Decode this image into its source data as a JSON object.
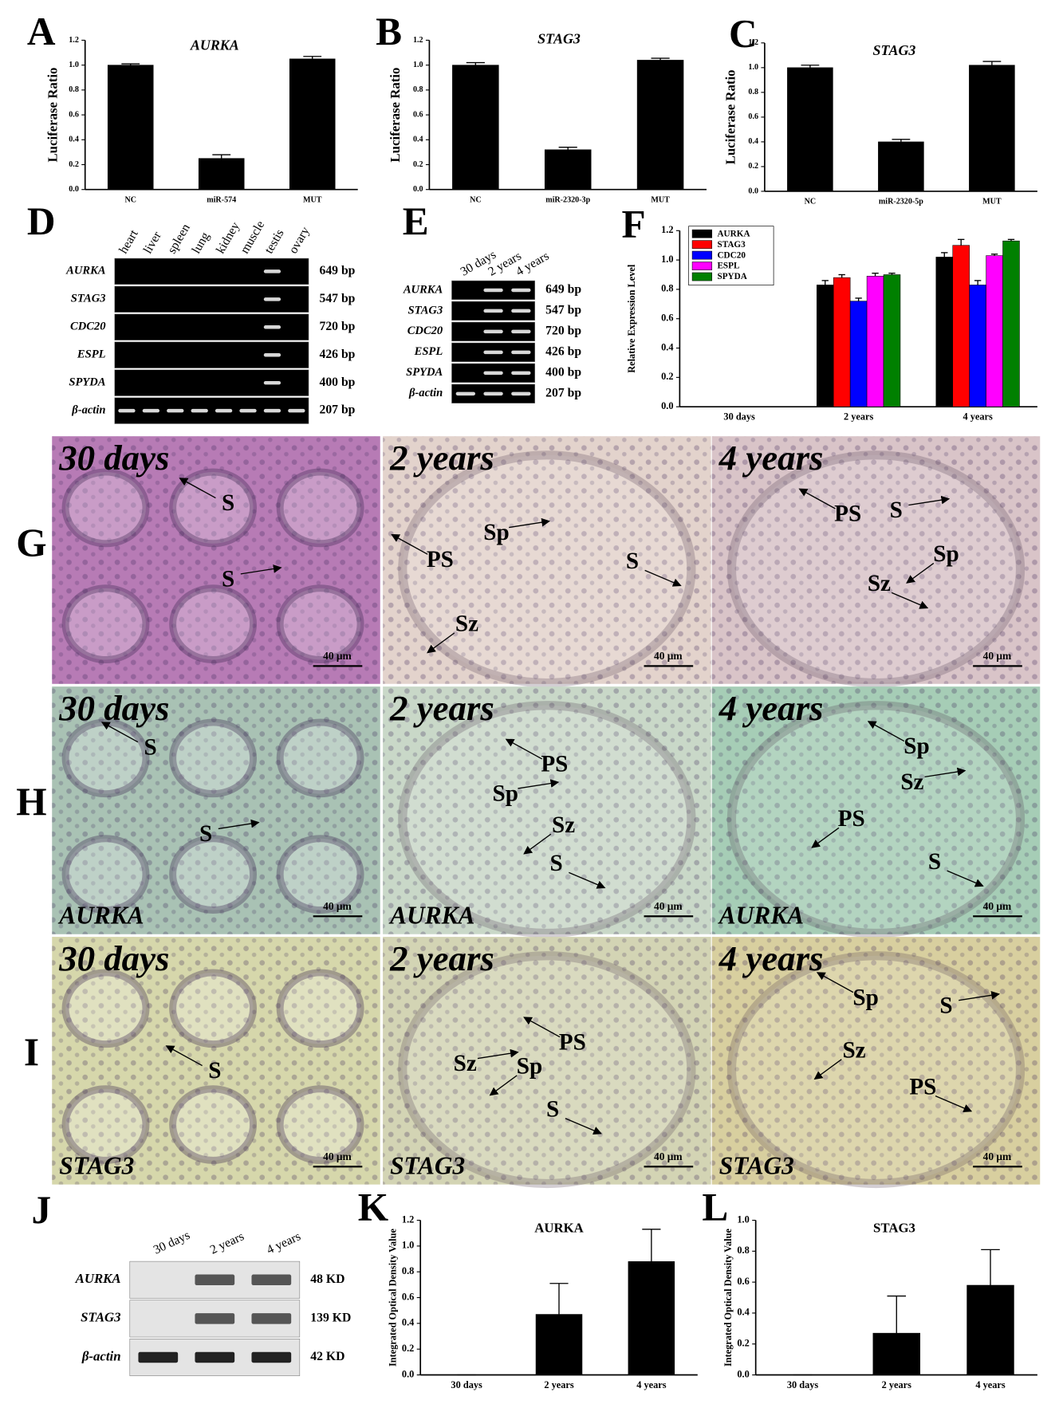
{
  "chart_data": [
    {
      "type": "bar",
      "panel": "A",
      "title": "AURKA",
      "ylabel": "Luciferase Ratio",
      "categories": [
        "NC",
        "miR-574",
        "MUT"
      ],
      "values": [
        1.0,
        0.25,
        1.05
      ],
      "errors": [
        0.01,
        0.03,
        0.02
      ],
      "color": "#000000",
      "ylim": [
        0,
        1.2
      ],
      "yticks": [
        {
          "value": 0,
          "label": "0.0"
        },
        0.2,
        0.4,
        0.6,
        0.8,
        {
          "value": 1,
          "label": "1.0"
        },
        1.2
      ]
    },
    {
      "type": "bar",
      "panel": "B",
      "title": "STAG3",
      "ylabel": "Luciferase Ratio",
      "categories": [
        "NC",
        "miR-2320-3p",
        "MUT"
      ],
      "values": [
        1.0,
        0.32,
        1.04
      ],
      "errors": [
        0.02,
        0.02,
        0.015
      ],
      "color": "#000000",
      "ylim": [
        0,
        1.2
      ],
      "yticks": [
        {
          "value": 0,
          "label": "0.0"
        },
        0.2,
        0.4,
        0.6,
        0.8,
        {
          "value": 1,
          "label": "1.0"
        },
        1.2
      ]
    },
    {
      "type": "bar",
      "panel": "C",
      "title": "STAG3",
      "ylabel": "Luciferase Ratio",
      "categories": [
        "NC",
        "miR-2320-5p",
        "MUT"
      ],
      "values": [
        1.0,
        0.4,
        1.02
      ],
      "errors": [
        0.02,
        0.02,
        0.03
      ],
      "color": "#000000",
      "ylim": [
        0,
        1.2
      ],
      "yticks": [
        {
          "value": 0,
          "label": "0.0"
        },
        0.2,
        0.4,
        0.6,
        0.8,
        {
          "value": 1,
          "label": "1.0"
        },
        1.2
      ]
    },
    {
      "type": "bar",
      "panel": "F",
      "ylabel": "Relative Expression Level",
      "categories": [
        "30 days",
        "2 years",
        "4 years"
      ],
      "legend": "upper left",
      "ylim": [
        0,
        1.2
      ],
      "yticks": [
        {
          "value": 0,
          "label": "0.0"
        },
        0.2,
        0.4,
        0.6,
        0.8,
        {
          "value": 1,
          "label": "1.0"
        },
        1.2
      ],
      "series": [
        {
          "name": "AURKA",
          "color": "#000000",
          "values": [
            0,
            0.83,
            1.02
          ],
          "errors": [
            0,
            0.03,
            0.03
          ]
        },
        {
          "name": "STAG3",
          "color": "#ff0000",
          "values": [
            0,
            0.88,
            1.1
          ],
          "errors": [
            0,
            0.02,
            0.04
          ]
        },
        {
          "name": "CDC20",
          "color": "#0000ff",
          "values": [
            0,
            0.72,
            0.83
          ],
          "errors": [
            0,
            0.02,
            0.03
          ]
        },
        {
          "name": "ESPL",
          "color": "#ff00ff",
          "values": [
            0,
            0.89,
            1.03
          ],
          "errors": [
            0,
            0.02,
            0.01
          ]
        },
        {
          "name": "SPYDA",
          "color": "#008000",
          "values": [
            0,
            0.9,
            1.13
          ],
          "errors": [
            0,
            0.01,
            0.01
          ]
        }
      ]
    },
    {
      "type": "bar",
      "panel": "K",
      "title": "AURKA",
      "ylabel": "Integrated Optical Density Value",
      "categories": [
        "30 days",
        "2 years",
        "4 years"
      ],
      "values": [
        0,
        0.47,
        0.88
      ],
      "errors": [
        0,
        0.24,
        0.25
      ],
      "color": "#000000",
      "ylim": [
        0,
        1.2
      ],
      "yticks": [
        {
          "value": 0,
          "label": "0.0"
        },
        0.2,
        0.4,
        0.6,
        0.8,
        {
          "value": 1,
          "label": "1.0"
        },
        1.2
      ]
    },
    {
      "type": "bar",
      "panel": "L",
      "title": "STAG3",
      "ylabel": "Integrated Optical Density Value",
      "categories": [
        "30 days",
        "2 years",
        "4 years"
      ],
      "values": [
        0,
        0.27,
        0.58
      ],
      "errors": [
        0,
        0.24,
        0.23
      ],
      "color": "#000000",
      "ylim": [
        0,
        1.0
      ],
      "yticks": [
        {
          "value": 0,
          "label": "0.0"
        },
        0.2,
        0.4,
        0.6,
        0.8,
        {
          "value": 1,
          "label": "1.0"
        }
      ]
    }
  ],
  "gels": [
    {
      "panel": "D",
      "lanes": [
        "heart",
        "liver",
        "spleen",
        "lung",
        "kidney",
        "muscle",
        "testis",
        "ovary"
      ],
      "rows": [
        {
          "name": "AURKA",
          "size": "649 bp"
        },
        {
          "name": "STAG3",
          "size": "547 bp"
        },
        {
          "name": "CDC20",
          "size": "720 bp"
        },
        {
          "name": "ESPL",
          "size": "426 bp"
        },
        {
          "name": "SPYDA",
          "size": "400 bp"
        },
        {
          "name": "β-actin",
          "size": "207 bp"
        }
      ]
    },
    {
      "panel": "E",
      "lanes": [
        "30 days",
        "2 years",
        "4 years"
      ],
      "rows": [
        {
          "name": "AURKA",
          "size": "649 bp"
        },
        {
          "name": "STAG3",
          "size": "547 bp"
        },
        {
          "name": "CDC20",
          "size": "720 bp"
        },
        {
          "name": "ESPL",
          "size": "426 bp"
        },
        {
          "name": "SPYDA",
          "size": "400 bp"
        },
        {
          "name": "β-actin",
          "size": "207 bp"
        }
      ]
    },
    {
      "panel": "J",
      "lanes": [
        "30 days",
        "2 years",
        "4 years"
      ],
      "rows": [
        {
          "name": "AURKA",
          "size": "48 KD"
        },
        {
          "name": "STAG3",
          "size": "139 KD"
        },
        {
          "name": "β-actin",
          "size": "42 KD"
        }
      ]
    }
  ],
  "histology": [
    {
      "panel": "G",
      "images": [
        {
          "stage": "30 days",
          "labels": [
            "S",
            "S"
          ],
          "scale": "40 μm"
        },
        {
          "stage": "2 years",
          "labels": [
            "PS",
            "Sp",
            "Sz",
            "S"
          ],
          "scale": "40 μm"
        },
        {
          "stage": "4 years",
          "labels": [
            "PS",
            "S",
            "Sp",
            "Sz"
          ],
          "scale": "40 μm"
        }
      ]
    },
    {
      "panel": "H",
      "images": [
        {
          "stage": "30 days",
          "labels": [
            "S",
            "S"
          ],
          "gene": "AURKA",
          "scale": "40 μm"
        },
        {
          "stage": "2 years",
          "labels": [
            "PS",
            "Sp",
            "Sz",
            "S"
          ],
          "gene": "AURKA",
          "scale": "40 μm"
        },
        {
          "stage": "4 years",
          "labels": [
            "Sp",
            "Sz",
            "PS",
            "S"
          ],
          "gene": "AURKA",
          "scale": "40 μm"
        }
      ]
    },
    {
      "panel": "I",
      "images": [
        {
          "stage": "30 days",
          "labels": [
            "S"
          ],
          "gene": "STAG3",
          "scale": "40 μm"
        },
        {
          "stage": "2 years",
          "labels": [
            "PS",
            "Sz",
            "Sp",
            "S"
          ],
          "gene": "STAG3",
          "scale": "40 μm"
        },
        {
          "stage": "4 years",
          "labels": [
            "Sp",
            "S",
            "Sz",
            "PS"
          ],
          "gene": "STAG3",
          "scale": "40 μm"
        }
      ]
    }
  ]
}
